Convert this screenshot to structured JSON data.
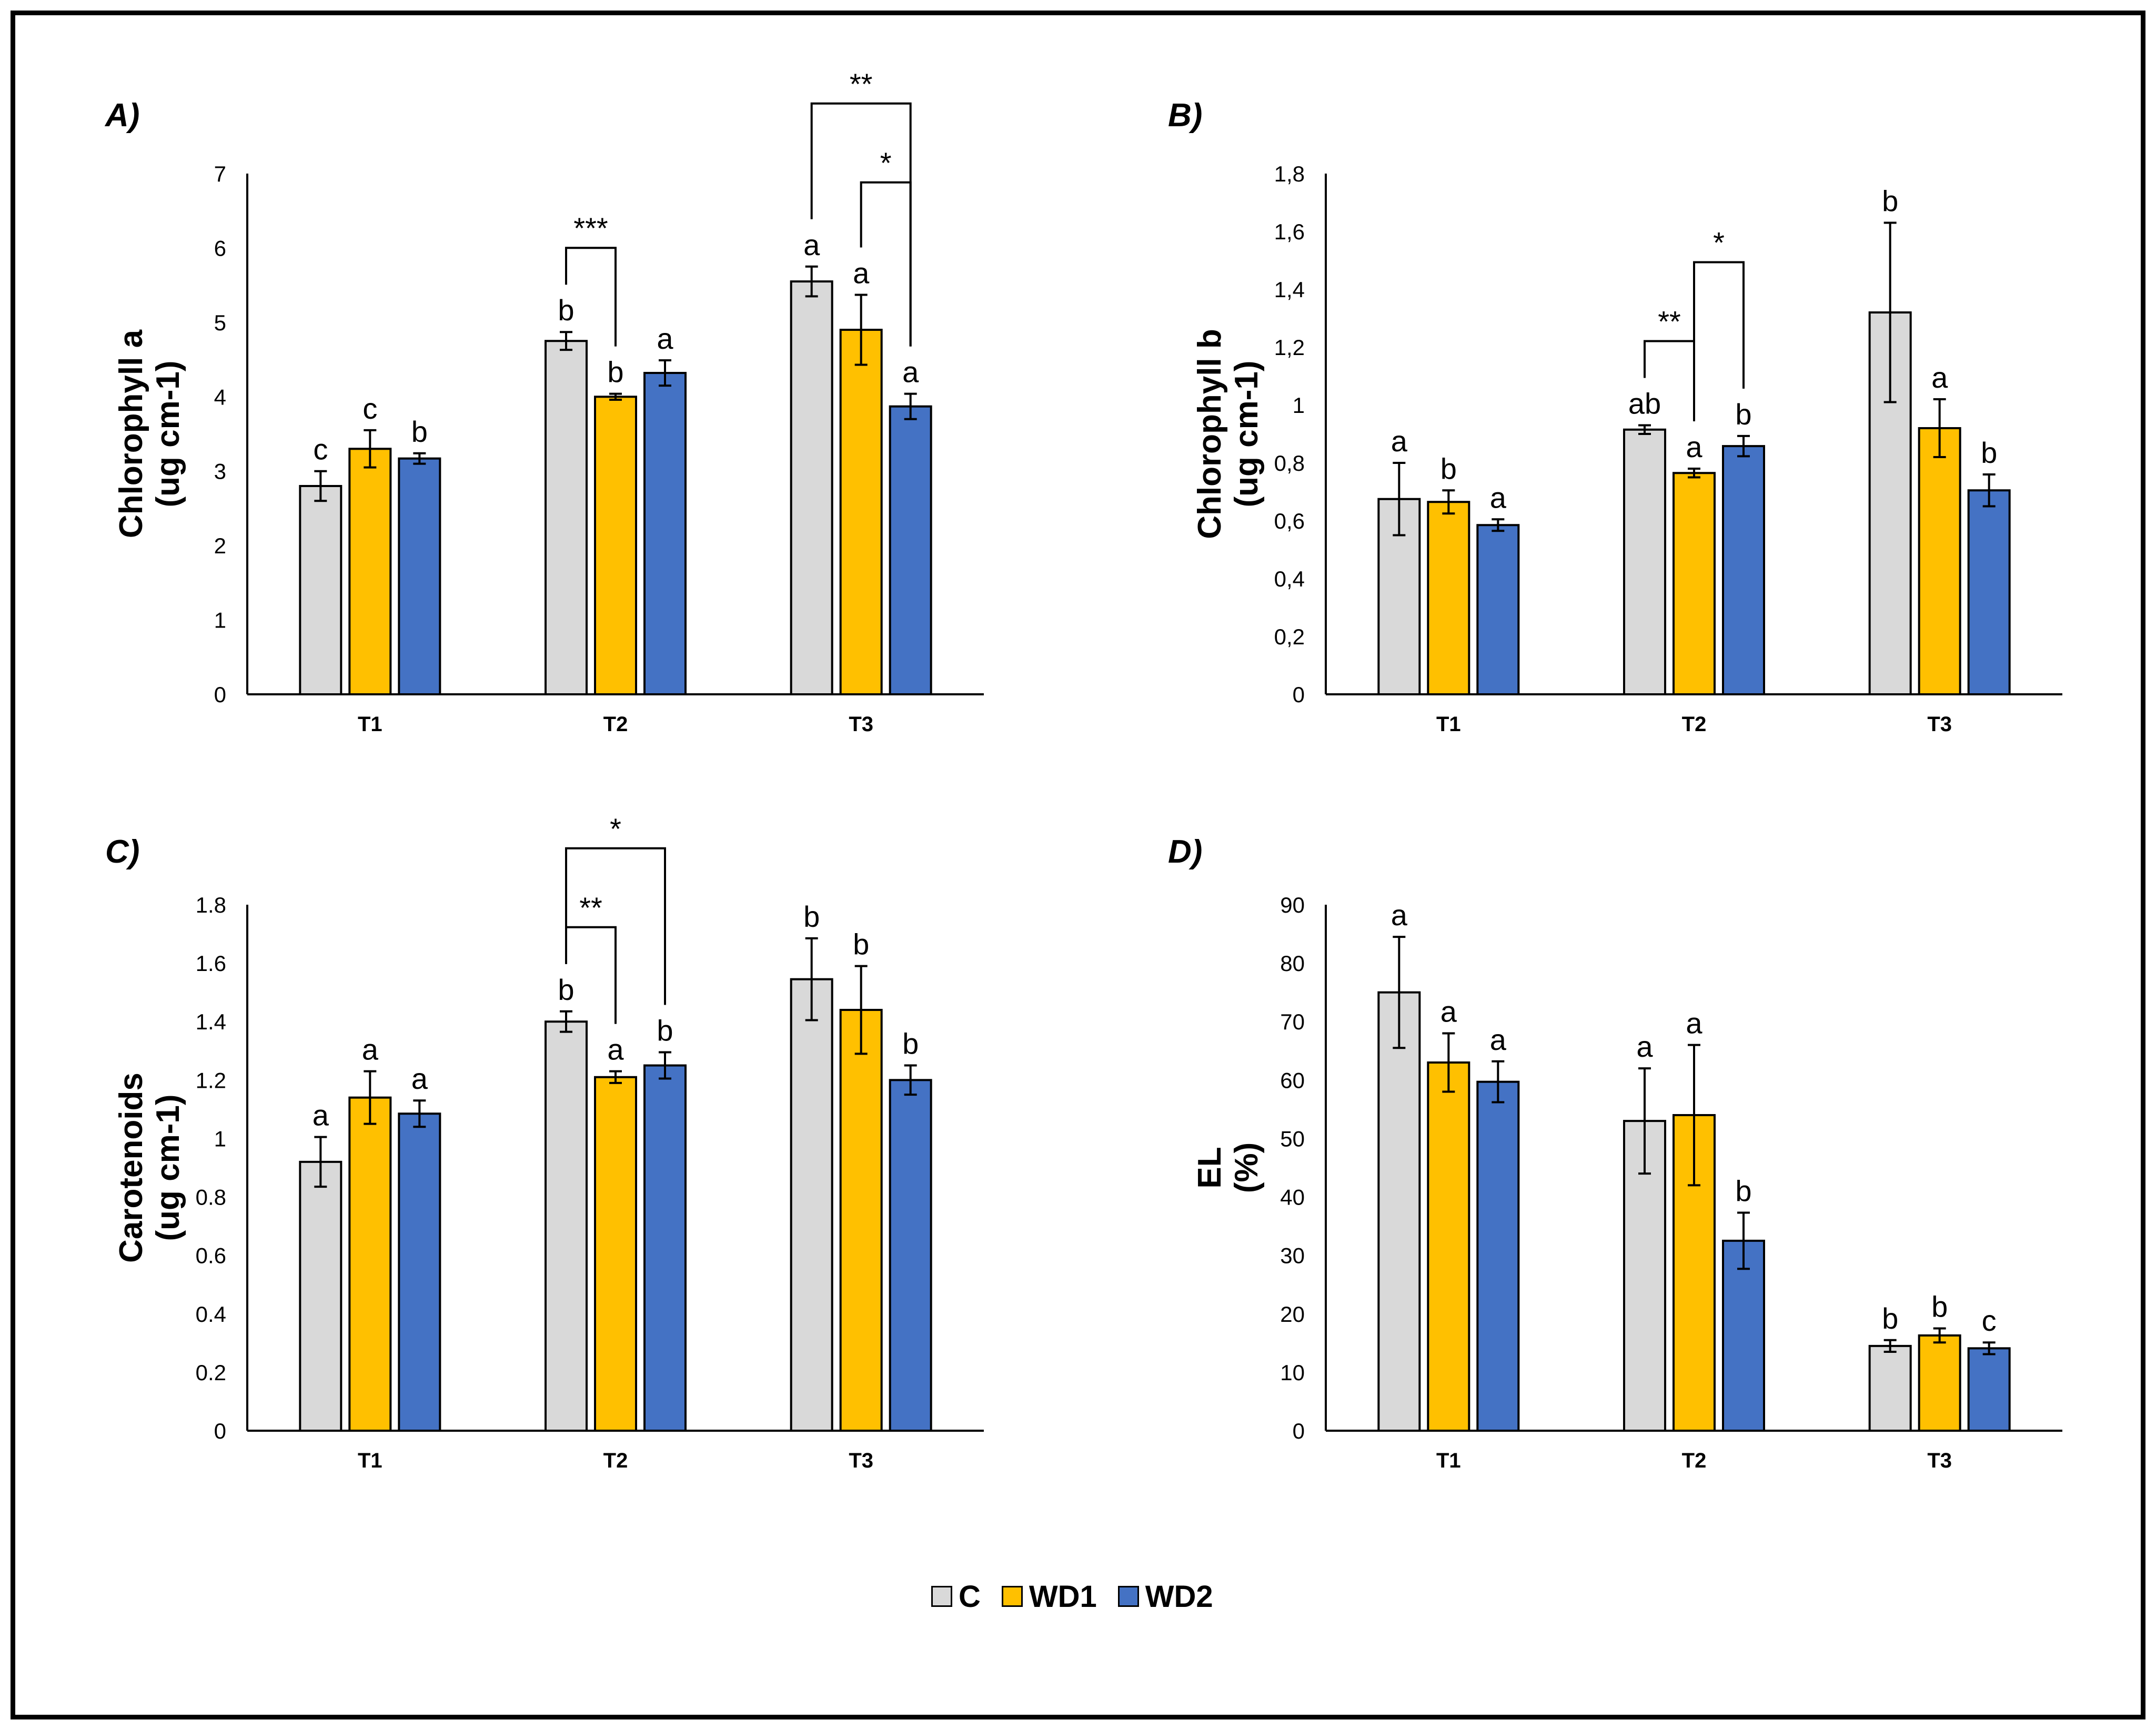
{
  "series_colors": {
    "C": "#d9d9d9",
    "WD1": "#ffc000",
    "WD2": "#4472c4"
  },
  "legend": [
    {
      "name": "C",
      "color": "#d9d9d9"
    },
    {
      "name": "WD1",
      "color": "#ffc000"
    },
    {
      "name": "WD2",
      "color": "#4472c4"
    }
  ],
  "chart_data": [
    {
      "type": "bar",
      "panel_label": "A)",
      "ylabel_line1": "Chlorophyll a",
      "ylabel_line2": "(ug cm-1)",
      "categories": [
        "T1",
        "T2",
        "T3"
      ],
      "ylim": [
        0,
        7
      ],
      "yticks": [
        "0",
        "1",
        "2",
        "3",
        "4",
        "5",
        "6",
        "7"
      ],
      "series": [
        {
          "name": "C",
          "values": [
            2.8,
            4.75,
            5.55
          ],
          "errors": [
            0.2,
            0.12,
            0.2
          ],
          "letters": [
            "c",
            "b",
            "a"
          ]
        },
        {
          "name": "WD1",
          "values": [
            3.3,
            4.0,
            4.9
          ],
          "errors": [
            0.25,
            0.04,
            0.47
          ],
          "letters": [
            "c",
            "b",
            "a"
          ]
        },
        {
          "name": "WD2",
          "values": [
            3.17,
            4.32,
            3.87
          ],
          "errors": [
            0.07,
            0.17,
            0.17
          ],
          "letters": [
            "b",
            "a",
            "a"
          ]
        }
      ],
      "brackets": [
        {
          "category": "T2",
          "from": "C",
          "to": "WD1",
          "label": "***",
          "level": 1
        },
        {
          "category": "T3",
          "from": "WD1",
          "to": "WD2",
          "label": "*",
          "level": 1
        },
        {
          "category": "T3",
          "from": "C",
          "to": "WD2",
          "label": "**",
          "level": 2
        }
      ]
    },
    {
      "type": "bar",
      "panel_label": "B)",
      "ylabel_line1": "Chlorophyll b",
      "ylabel_line2": "(ug cm-1)",
      "categories": [
        "T1",
        "T2",
        "T3"
      ],
      "ylim": [
        0,
        1.8
      ],
      "yticks": [
        "0",
        "0,2",
        "0,4",
        "0,6",
        "0,8",
        "1",
        "1,2",
        "1,4",
        "1,6",
        "1,8"
      ],
      "series": [
        {
          "name": "C",
          "values": [
            0.675,
            0.915,
            1.32
          ],
          "errors": [
            0.125,
            0.015,
            0.31
          ],
          "letters": [
            "a",
            "ab",
            "b"
          ]
        },
        {
          "name": "WD1",
          "values": [
            0.665,
            0.765,
            0.92
          ],
          "errors": [
            0.04,
            0.015,
            0.1
          ],
          "letters": [
            "b",
            "a",
            "a"
          ]
        },
        {
          "name": "WD2",
          "values": [
            0.585,
            0.858,
            0.705
          ],
          "errors": [
            0.02,
            0.035,
            0.055
          ],
          "letters": [
            "a",
            "b",
            "b"
          ]
        }
      ],
      "brackets": [
        {
          "category": "T2",
          "from": "C",
          "to": "WD1",
          "label": "**",
          "level": 1
        },
        {
          "category": "T2",
          "from": "WD1",
          "to": "WD2",
          "label": "*",
          "level": 2
        }
      ]
    },
    {
      "type": "bar",
      "panel_label": "C)",
      "ylabel_line1": "Carotenoids",
      "ylabel_line2": "(ug cm-1)",
      "categories": [
        "T1",
        "T2",
        "T3"
      ],
      "ylim": [
        0,
        1.8
      ],
      "yticks": [
        "0",
        "0.2",
        "0.4",
        "0.6",
        "0.8",
        "1",
        "1.2",
        "1.4",
        "1.6",
        "1.8"
      ],
      "series": [
        {
          "name": "C",
          "values": [
            0.92,
            1.4,
            1.545
          ],
          "errors": [
            0.085,
            0.035,
            0.14
          ],
          "letters": [
            "a",
            "b",
            "b"
          ]
        },
        {
          "name": "WD1",
          "values": [
            1.14,
            1.21,
            1.44
          ],
          "errors": [
            0.09,
            0.02,
            0.15
          ],
          "letters": [
            "a",
            "a",
            "b"
          ]
        },
        {
          "name": "WD2",
          "values": [
            1.085,
            1.25,
            1.2
          ],
          "errors": [
            0.045,
            0.045,
            0.05
          ],
          "letters": [
            "a",
            "b",
            "b"
          ]
        }
      ],
      "brackets": [
        {
          "category": "T2",
          "from": "C",
          "to": "WD1",
          "label": "**",
          "level": 1
        },
        {
          "category": "T2",
          "from": "C",
          "to": "WD2",
          "label": "*",
          "level": 2
        }
      ]
    },
    {
      "type": "bar",
      "panel_label": "D)",
      "ylabel_line1": "EL",
      "ylabel_line2": "(%)",
      "categories": [
        "T1",
        "T2",
        "T3"
      ],
      "ylim": [
        0,
        90
      ],
      "yticks": [
        "0",
        "10",
        "20",
        "30",
        "40",
        "50",
        "60",
        "70",
        "80",
        "90"
      ],
      "series": [
        {
          "name": "C",
          "values": [
            75,
            53,
            14.5
          ],
          "errors": [
            9.5,
            9,
            1
          ],
          "letters": [
            "a",
            "a",
            "b"
          ]
        },
        {
          "name": "WD1",
          "values": [
            63,
            54,
            16.3
          ],
          "errors": [
            5,
            12,
            1.2
          ],
          "letters": [
            "a",
            "a",
            "b"
          ]
        },
        {
          "name": "WD2",
          "values": [
            59.7,
            32.5,
            14.1
          ],
          "errors": [
            3.5,
            4.8,
            1
          ],
          "letters": [
            "a",
            "b",
            "c"
          ]
        }
      ],
      "brackets": []
    }
  ]
}
